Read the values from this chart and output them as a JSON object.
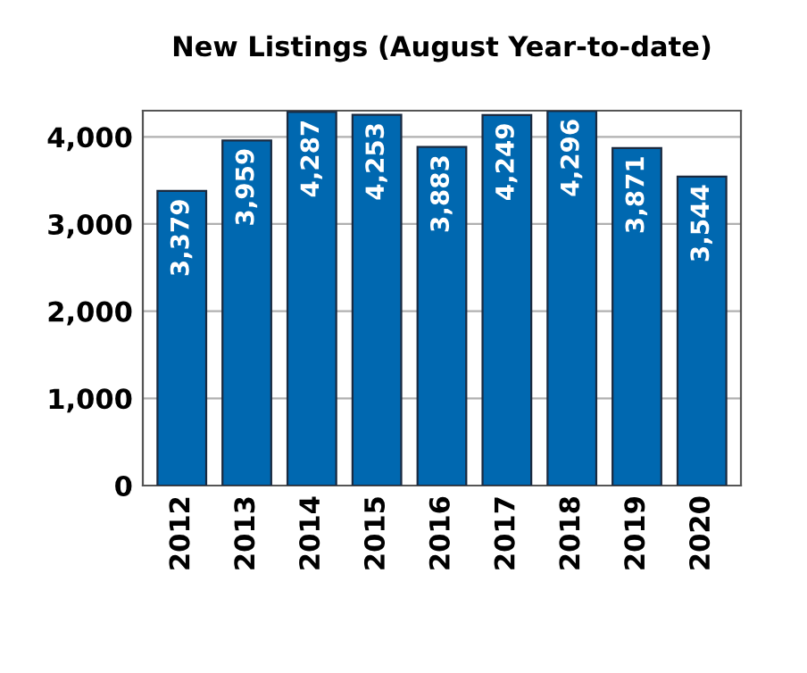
{
  "chart_data": {
    "type": "bar",
    "title": "New Listings (August Year-to-date)",
    "categories": [
      "2012",
      "2013",
      "2014",
      "2015",
      "2016",
      "2017",
      "2018",
      "2019",
      "2020"
    ],
    "values": [
      3379,
      3959,
      4287,
      4253,
      3883,
      4249,
      4296,
      3871,
      3544
    ],
    "value_labels": [
      "3,379",
      "3,959",
      "4,287",
      "4,253",
      "3,883",
      "4,249",
      "4,296",
      "3,871",
      "3,544"
    ],
    "color": "#0068b0",
    "ylim": [
      0,
      4300
    ],
    "yticks": [
      {
        "value": 0,
        "label": "0"
      },
      {
        "value": 1000,
        "label": "1,000"
      },
      {
        "value": 2000,
        "label": "2,000"
      },
      {
        "value": 3000,
        "label": "3,000"
      },
      {
        "value": 4000,
        "label": "4,000"
      }
    ],
    "grid": "y",
    "legend": false
  }
}
